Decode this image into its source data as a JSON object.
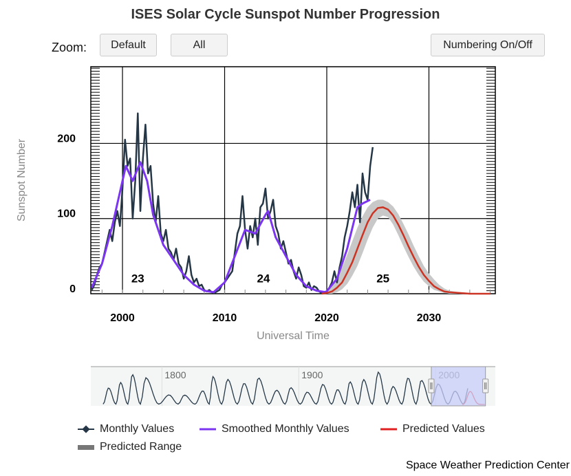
{
  "toolbar": {
    "zoom_label": "Zoom:",
    "default_label": "Default",
    "all_label": "All",
    "numbering_label": "Numbering On/Off"
  },
  "footer": "Space Weather Prediction Center",
  "colors": {
    "monthly": "#253746",
    "smoothed": "#7b35f0",
    "predicted": "#cc3322",
    "range": "#c8c8c8",
    "navigator_selection": "#c8cdfa"
  },
  "chart_data": {
    "type": "line",
    "title": "ISES Solar Cycle Sunspot Number Progression",
    "xlabel": "Universal Time",
    "ylabel": "Sunspot Number",
    "xlim": [
      1996.9,
      2036.5
    ],
    "ylim": [
      0,
      302
    ],
    "grid": true,
    "x_ticks": [
      2000,
      2010,
      2020,
      2030
    ],
    "y_ticks": [
      0,
      100,
      200
    ],
    "cycle_labels": [
      {
        "label": "23",
        "x": 2001.5
      },
      {
        "label": "24",
        "x": 2013.8
      },
      {
        "label": "25",
        "x": 2025.5
      }
    ],
    "legend_position": "bottom",
    "legend": [
      "Monthly Values",
      "Smoothed Monthly Values",
      "Predicted Values",
      "Predicted Range"
    ],
    "series": [
      {
        "name": "Monthly Values",
        "x": [
          "1997-01",
          "1997-04",
          "1997-07",
          "1997-10",
          "1998-01",
          "1998-04",
          "1998-07",
          "1998-10",
          "1999-01",
          "1999-04",
          "1999-07",
          "1999-10",
          "2000-01",
          "2000-04",
          "2000-07",
          "2000-10",
          "2001-01",
          "2001-04",
          "2001-07",
          "2001-10",
          "2002-01",
          "2002-04",
          "2002-07",
          "2002-10",
          "2003-01",
          "2003-04",
          "2003-07",
          "2003-10",
          "2004-01",
          "2004-04",
          "2004-07",
          "2004-10",
          "2005-01",
          "2005-04",
          "2005-07",
          "2005-10",
          "2006-01",
          "2006-04",
          "2006-07",
          "2006-10",
          "2007-01",
          "2007-04",
          "2007-07",
          "2007-10",
          "2008-01",
          "2008-04",
          "2008-07",
          "2008-10",
          "2009-01",
          "2009-04",
          "2009-07",
          "2009-10",
          "2010-01",
          "2010-04",
          "2010-07",
          "2010-10",
          "2011-01",
          "2011-04",
          "2011-07",
          "2011-10",
          "2012-01",
          "2012-04",
          "2012-07",
          "2012-10",
          "2013-01",
          "2013-04",
          "2013-07",
          "2013-10",
          "2014-01",
          "2014-04",
          "2014-07",
          "2014-10",
          "2015-01",
          "2015-04",
          "2015-07",
          "2015-10",
          "2016-01",
          "2016-04",
          "2016-07",
          "2016-10",
          "2017-01",
          "2017-04",
          "2017-07",
          "2017-10",
          "2018-01",
          "2018-04",
          "2018-07",
          "2018-10",
          "2019-01",
          "2019-04",
          "2019-07",
          "2019-10",
          "2020-01",
          "2020-04",
          "2020-07",
          "2020-10",
          "2021-01",
          "2021-04",
          "2021-07",
          "2021-10",
          "2022-01",
          "2022-04",
          "2022-07",
          "2022-10",
          "2023-01",
          "2023-04",
          "2023-07",
          "2023-10",
          "2024-01",
          "2024-04",
          "2024-07"
        ],
        "values": [
          5,
          12,
          25,
          35,
          40,
          55,
          70,
          85,
          70,
          95,
          110,
          90,
          140,
          205,
          170,
          180,
          100,
          150,
          240,
          110,
          180,
          225,
          160,
          170,
          120,
          95,
          130,
          80,
          70,
          85,
          60,
          55,
          45,
          60,
          40,
          35,
          20,
          30,
          50,
          25,
          15,
          20,
          10,
          12,
          5,
          3,
          5,
          2,
          1,
          3,
          5,
          12,
          15,
          20,
          25,
          30,
          55,
          80,
          90,
          130,
          85,
          60,
          90,
          75,
          100,
          65,
          115,
          120,
          140,
          100,
          110,
          125,
          90,
          80,
          60,
          70,
          55,
          40,
          45,
          30,
          20,
          35,
          25,
          10,
          8,
          15,
          5,
          10,
          8,
          3,
          1,
          2,
          3,
          8,
          15,
          30,
          15,
          35,
          50,
          75,
          90,
          110,
          135,
          115,
          145,
          95,
          160,
          135,
          125,
          170,
          195
        ]
      },
      {
        "name": "Smoothed Monthly Values",
        "x": [
          "1997-01",
          "1998-01",
          "1999-01",
          "2000-01",
          "2000-05",
          "2001-01",
          "2001-10",
          "2002-06",
          "2003-01",
          "2004-01",
          "2005-01",
          "2006-01",
          "2007-01",
          "2008-01",
          "2008-12",
          "2010-01",
          "2011-01",
          "2012-01",
          "2013-01",
          "2014-01",
          "2014-04",
          "2015-01",
          "2016-01",
          "2017-01",
          "2018-01",
          "2019-01",
          "2019-12",
          "2021-01",
          "2022-01",
          "2023-01",
          "2023-07",
          "2024-04"
        ],
        "values": [
          8,
          40,
          90,
          150,
          170,
          150,
          175,
          150,
          105,
          65,
          45,
          25,
          12,
          4,
          2,
          15,
          50,
          85,
          80,
          105,
          110,
          75,
          50,
          25,
          10,
          4,
          2,
          20,
          60,
          115,
          120,
          125
        ]
      },
      {
        "name": "Predicted Values",
        "x": [
          2019.5,
          2020,
          2020.5,
          2021,
          2021.5,
          2022,
          2022.5,
          2023,
          2023.5,
          2024,
          2024.5,
          2025,
          2025.5,
          2026,
          2026.5,
          2027,
          2027.5,
          2028,
          2028.5,
          2029,
          2029.5,
          2030,
          2030.5,
          2031,
          2031.5,
          2032,
          2033,
          2034,
          2036
        ],
        "values": [
          0,
          1,
          3,
          8,
          15,
          28,
          42,
          60,
          78,
          95,
          107,
          114,
          115,
          112,
          104,
          92,
          78,
          63,
          49,
          36,
          25,
          17,
          10,
          6,
          3,
          2,
          1,
          0,
          0
        ],
        "range_high": [
          2,
          5,
          12,
          22,
          35,
          52,
          70,
          88,
          103,
          115,
          122,
          125,
          125,
          122,
          116,
          106,
          93,
          79,
          64,
          50,
          37,
          27,
          19,
          12,
          7,
          4,
          2,
          1,
          0
        ],
        "range_low": [
          0,
          0,
          0,
          2,
          6,
          13,
          24,
          37,
          54,
          72,
          88,
          100,
          104,
          102,
          92,
          78,
          63,
          49,
          36,
          25,
          16,
          10,
          5,
          3,
          1,
          0,
          0,
          0,
          0
        ]
      }
    ],
    "navigator": {
      "xlim": [
        1748,
        2043.7
      ],
      "x_ticks": [
        1800,
        1900,
        2000
      ],
      "selection": [
        1996.9,
        2036.5
      ],
      "cycle_peaks": [
        [
          1761,
          144
        ],
        [
          1769.7,
          193
        ],
        [
          1778.4,
          264
        ],
        [
          1788.1,
          235
        ],
        [
          1805.2,
          82
        ],
        [
          1816.4,
          81
        ],
        [
          1829.9,
          119
        ],
        [
          1837.2,
          245
        ],
        [
          1848.1,
          220
        ],
        [
          1860.1,
          186
        ],
        [
          1870.6,
          234
        ],
        [
          1883.9,
          124
        ],
        [
          1894.1,
          147
        ],
        [
          1906.2,
          107
        ],
        [
          1917.6,
          176
        ],
        [
          1928.4,
          130
        ],
        [
          1937.4,
          199
        ],
        [
          1947.4,
          219
        ],
        [
          1958.2,
          285
        ],
        [
          1968.9,
          157
        ],
        [
          1979.9,
          233
        ],
        [
          1989.6,
          213
        ],
        [
          2001.9,
          180
        ],
        [
          2014.3,
          116
        ],
        [
          2024.5,
          160
        ]
      ]
    }
  }
}
